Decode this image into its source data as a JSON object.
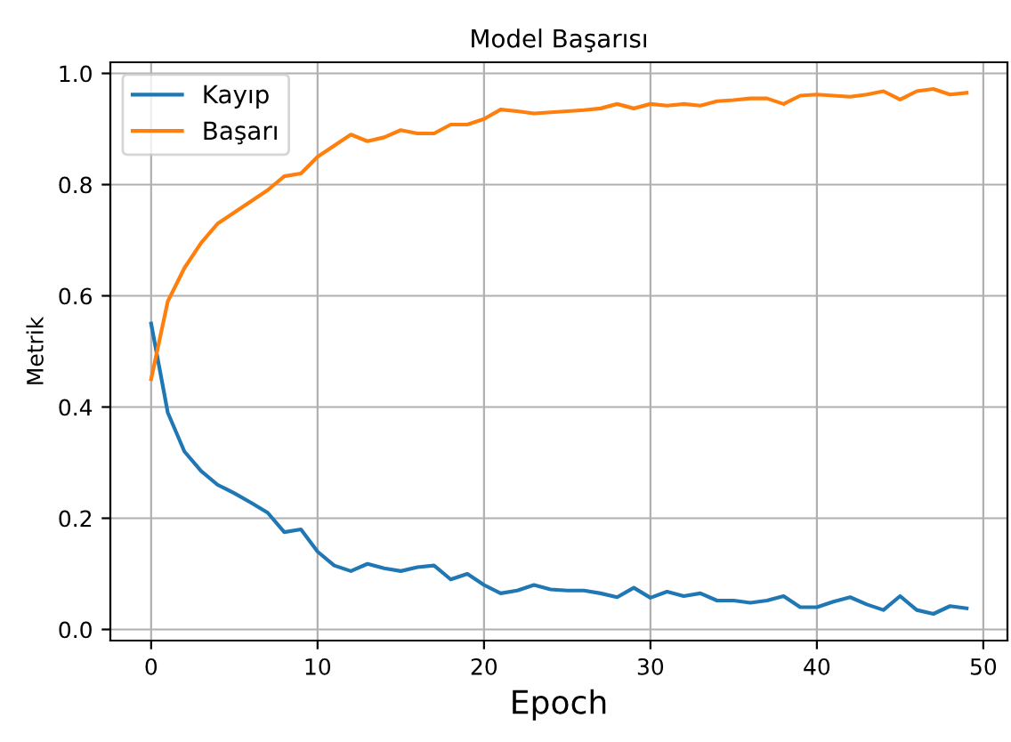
{
  "chart_data": {
    "type": "line",
    "title": "Model Başarısı",
    "xlabel": "Epoch",
    "ylabel": "Metrik",
    "x": [
      0,
      1,
      2,
      3,
      4,
      5,
      6,
      7,
      8,
      9,
      10,
      11,
      12,
      13,
      14,
      15,
      16,
      17,
      18,
      19,
      20,
      21,
      22,
      23,
      24,
      25,
      26,
      27,
      28,
      29,
      30,
      31,
      32,
      33,
      34,
      35,
      36,
      37,
      38,
      39,
      40,
      41,
      42,
      43,
      44,
      45,
      46,
      47,
      48,
      49
    ],
    "series": [
      {
        "name": "Kayıp",
        "color": "#1f77b4",
        "values": [
          0.55,
          0.39,
          0.32,
          0.285,
          0.26,
          0.245,
          0.228,
          0.21,
          0.175,
          0.18,
          0.14,
          0.115,
          0.105,
          0.118,
          0.11,
          0.105,
          0.112,
          0.115,
          0.09,
          0.1,
          0.08,
          0.065,
          0.07,
          0.08,
          0.072,
          0.07,
          0.07,
          0.065,
          0.058,
          0.075,
          0.057,
          0.068,
          0.06,
          0.065,
          0.052,
          0.052,
          0.048,
          0.052,
          0.06,
          0.04,
          0.04,
          0.05,
          0.058,
          0.045,
          0.035,
          0.06,
          0.035,
          0.028,
          0.042,
          0.038
        ]
      },
      {
        "name": "Başarı",
        "color": "#ff7f0e",
        "values": [
          0.45,
          0.59,
          0.65,
          0.695,
          0.73,
          0.75,
          0.77,
          0.79,
          0.815,
          0.82,
          0.85,
          0.87,
          0.89,
          0.878,
          0.885,
          0.898,
          0.892,
          0.892,
          0.908,
          0.908,
          0.918,
          0.935,
          0.932,
          0.928,
          0.93,
          0.932,
          0.934,
          0.937,
          0.945,
          0.937,
          0.945,
          0.942,
          0.945,
          0.942,
          0.95,
          0.952,
          0.955,
          0.955,
          0.945,
          0.96,
          0.962,
          0.96,
          0.958,
          0.962,
          0.968,
          0.953,
          0.968,
          0.972,
          0.962,
          0.965
        ]
      }
    ],
    "xlim": [
      -2.45,
      51.45
    ],
    "ylim": [
      -0.02,
      1.02
    ],
    "xticks": [
      0,
      10,
      20,
      30,
      40,
      50
    ],
    "yticks": [
      {
        "value": 0,
        "label": "0.0"
      },
      0.2,
      0.4,
      0.6,
      0.8,
      {
        "value": 1,
        "label": "1.0"
      }
    ],
    "grid": true,
    "legend": "top left"
  }
}
